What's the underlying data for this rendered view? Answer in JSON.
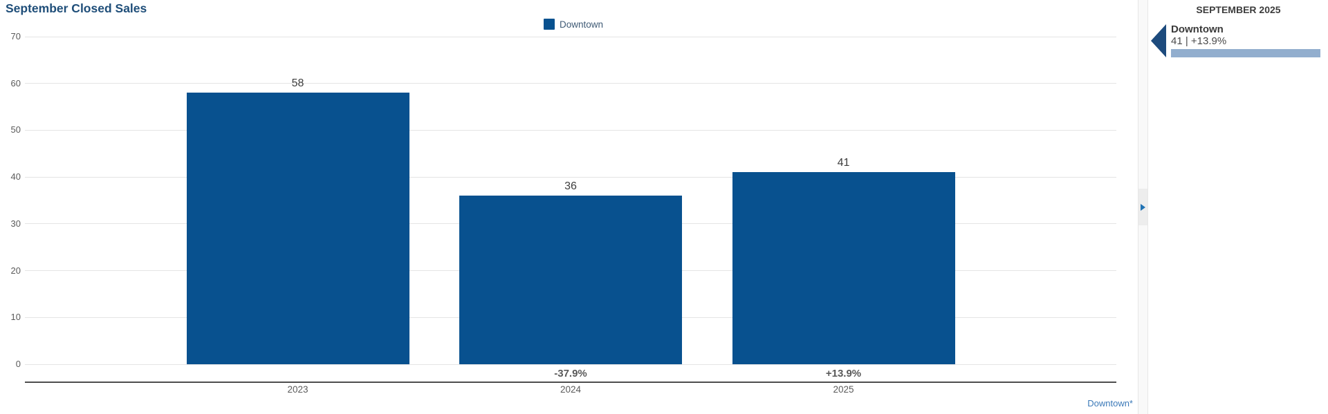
{
  "title": "September Closed Sales",
  "legend": {
    "label": "Downtown"
  },
  "chart_data": {
    "type": "bar",
    "title": "September Closed Sales",
    "series_name": "Downtown",
    "categories": [
      "2023",
      "2024",
      "2025"
    ],
    "values": [
      58,
      36,
      41
    ],
    "value_labels": [
      "58",
      "36",
      "41"
    ],
    "pct_change_labels": [
      "",
      "-37.9%",
      "+13.9%"
    ],
    "xlabel": "",
    "ylabel": "",
    "ylim": [
      0,
      70
    ],
    "yticks": [
      70,
      60,
      50,
      40,
      30,
      20,
      10,
      0
    ],
    "grid": true,
    "legend_position": "top-center",
    "bar_color": "#08518f"
  },
  "footnote_link": "Downtown*",
  "sidebar": {
    "header": "SEPTEMBER 2025",
    "items": [
      {
        "name": "Downtown",
        "value_line": "41 | +13.9%",
        "bar_color": "#92aece",
        "arrow_color": "#1d4b7d"
      }
    ]
  },
  "colors": {
    "title": "#1f4e79",
    "bar": "#08518f",
    "link": "#3b79b8",
    "axis_line": "#4d4d4d",
    "gridline": "#e4e4e4"
  }
}
